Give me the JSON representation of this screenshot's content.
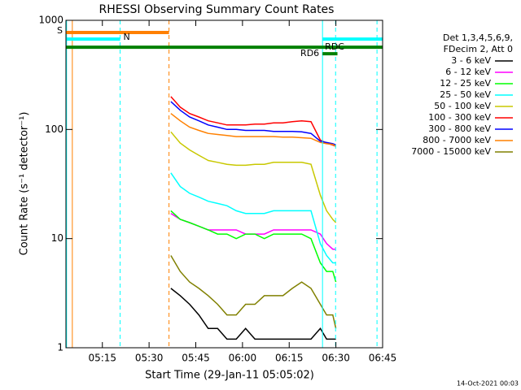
{
  "chart_data": {
    "type": "line",
    "title": "RHESSI Observing Summary Count Rates",
    "xlabel": "Start Time (29-Jan-11 05:05:02)",
    "ylabel": "Count Rate (s⁻¹ detector⁻¹)",
    "footer": "14-Oct-2021 00:03",
    "legend_header": [
      "Det 1,3,4,5,6,9,",
      "FDecim 2, Att 0"
    ],
    "log_y": true,
    "xlim": [
      3.3,
      105
    ],
    "ylim": [
      1,
      1000
    ],
    "yticks": [
      1,
      10,
      100,
      1000
    ],
    "xticks": [
      {
        "value": 15,
        "label": "05:15"
      },
      {
        "value": 30,
        "label": "05:30"
      },
      {
        "value": 45,
        "label": "05:45"
      },
      {
        "value": 60,
        "label": "06:00"
      },
      {
        "value": 75,
        "label": "06:15"
      },
      {
        "value": 90,
        "label": "06:30"
      },
      {
        "value": 105,
        "label": "06:45"
      }
    ],
    "x": [
      37,
      40,
      43,
      46,
      49,
      52,
      55,
      58,
      61,
      64,
      67,
      70,
      73,
      76,
      79,
      82,
      85,
      87,
      89,
      90
    ],
    "series": [
      {
        "name": "3 - 6 keV",
        "color": "#000000",
        "values": [
          3.5,
          3,
          2.5,
          2,
          1.5,
          1.5,
          1.2,
          1.2,
          1.5,
          1.2,
          1.2,
          1.2,
          1.2,
          1.2,
          1.2,
          1.2,
          1.5,
          1.2,
          1.2,
          1.2
        ]
      },
      {
        "name": "6 - 12 keV",
        "color": "#ff00ff",
        "values": [
          17,
          15,
          14,
          13,
          12,
          12,
          12,
          12,
          11,
          11,
          11,
          12,
          12,
          12,
          12,
          12,
          11,
          9,
          8,
          8
        ]
      },
      {
        "name": "12 - 25 keV",
        "color": "#00ff00",
        "values": [
          18,
          15,
          14,
          13,
          12,
          11,
          11,
          10,
          11,
          11,
          10,
          11,
          11,
          11,
          11,
          10,
          6,
          5,
          5,
          4
        ]
      },
      {
        "name": "25 - 50 keV",
        "color": "#00ffff",
        "values": [
          40,
          30,
          26,
          24,
          22,
          21,
          20,
          18,
          17,
          17,
          17,
          18,
          18,
          18,
          18,
          18,
          9,
          7,
          6,
          6
        ]
      },
      {
        "name": "50 - 100 keV",
        "color": "#c8c800",
        "values": [
          95,
          75,
          65,
          58,
          52,
          50,
          48,
          47,
          47,
          48,
          48,
          50,
          50,
          50,
          50,
          48,
          25,
          18,
          15,
          14
        ]
      },
      {
        "name": "100 - 300 keV",
        "color": "#ff0000",
        "values": [
          200,
          160,
          140,
          130,
          120,
          115,
          110,
          110,
          110,
          112,
          112,
          115,
          115,
          118,
          120,
          118,
          80,
          75,
          72,
          70
        ]
      },
      {
        "name": "300 - 800 keV",
        "color": "#0000ff",
        "values": [
          180,
          150,
          130,
          120,
          110,
          105,
          100,
          100,
          98,
          98,
          98,
          96,
          96,
          96,
          95,
          92,
          78,
          76,
          74,
          72
        ]
      },
      {
        "name": "800 - 7000 keV",
        "color": "#ff8000",
        "values": [
          140,
          120,
          105,
          98,
          92,
          90,
          88,
          86,
          86,
          86,
          86,
          86,
          85,
          85,
          84,
          83,
          76,
          74,
          73,
          70
        ]
      },
      {
        "name": "7000 - 15000 keV",
        "color": "#808000",
        "values": [
          7,
          5,
          4,
          3.5,
          3,
          2.5,
          2,
          2,
          2.5,
          2.5,
          3,
          3,
          3,
          3.5,
          4,
          3.5,
          2.5,
          2,
          2,
          1.5
        ]
      }
    ],
    "flag_bars": [
      {
        "label": "S",
        "color": "#ff8000",
        "label_color": "#ff8000",
        "x0": 3.3,
        "x1": 36.4,
        "y": 773
      },
      {
        "label": "N",
        "color": "#00ffff",
        "label_color": "#00ffff",
        "x0": 3.3,
        "x1": 20.7,
        "y": 673
      },
      {
        "color": "#008000",
        "x0": 3.3,
        "x1": 105,
        "y": 567
      },
      {
        "label": "RD6",
        "color": "#008000",
        "label_color": "#008000",
        "x0": 85.7,
        "x1": 90.5,
        "y": 494
      },
      {
        "label": "RDC",
        "color": "#00ffff",
        "label_color": "#008000",
        "x0": 85.7,
        "x1": 105,
        "y": 673
      }
    ],
    "flag_lines": [
      {
        "x": 3.5,
        "color": "#00ffff",
        "dashed": false
      },
      {
        "x": 5.35,
        "color": "#ff8000",
        "dashed": false
      },
      {
        "x": 20.7,
        "color": "#00ffff",
        "dashed": true
      },
      {
        "x": 36.4,
        "color": "#ff8000",
        "dashed": true
      },
      {
        "x": 85.7,
        "color": "#00ffff",
        "dashed": false
      },
      {
        "x": 89.9,
        "color": "#00ffff",
        "dashed": true
      },
      {
        "x": 103.2,
        "color": "#00ffff",
        "dashed": true
      }
    ]
  }
}
